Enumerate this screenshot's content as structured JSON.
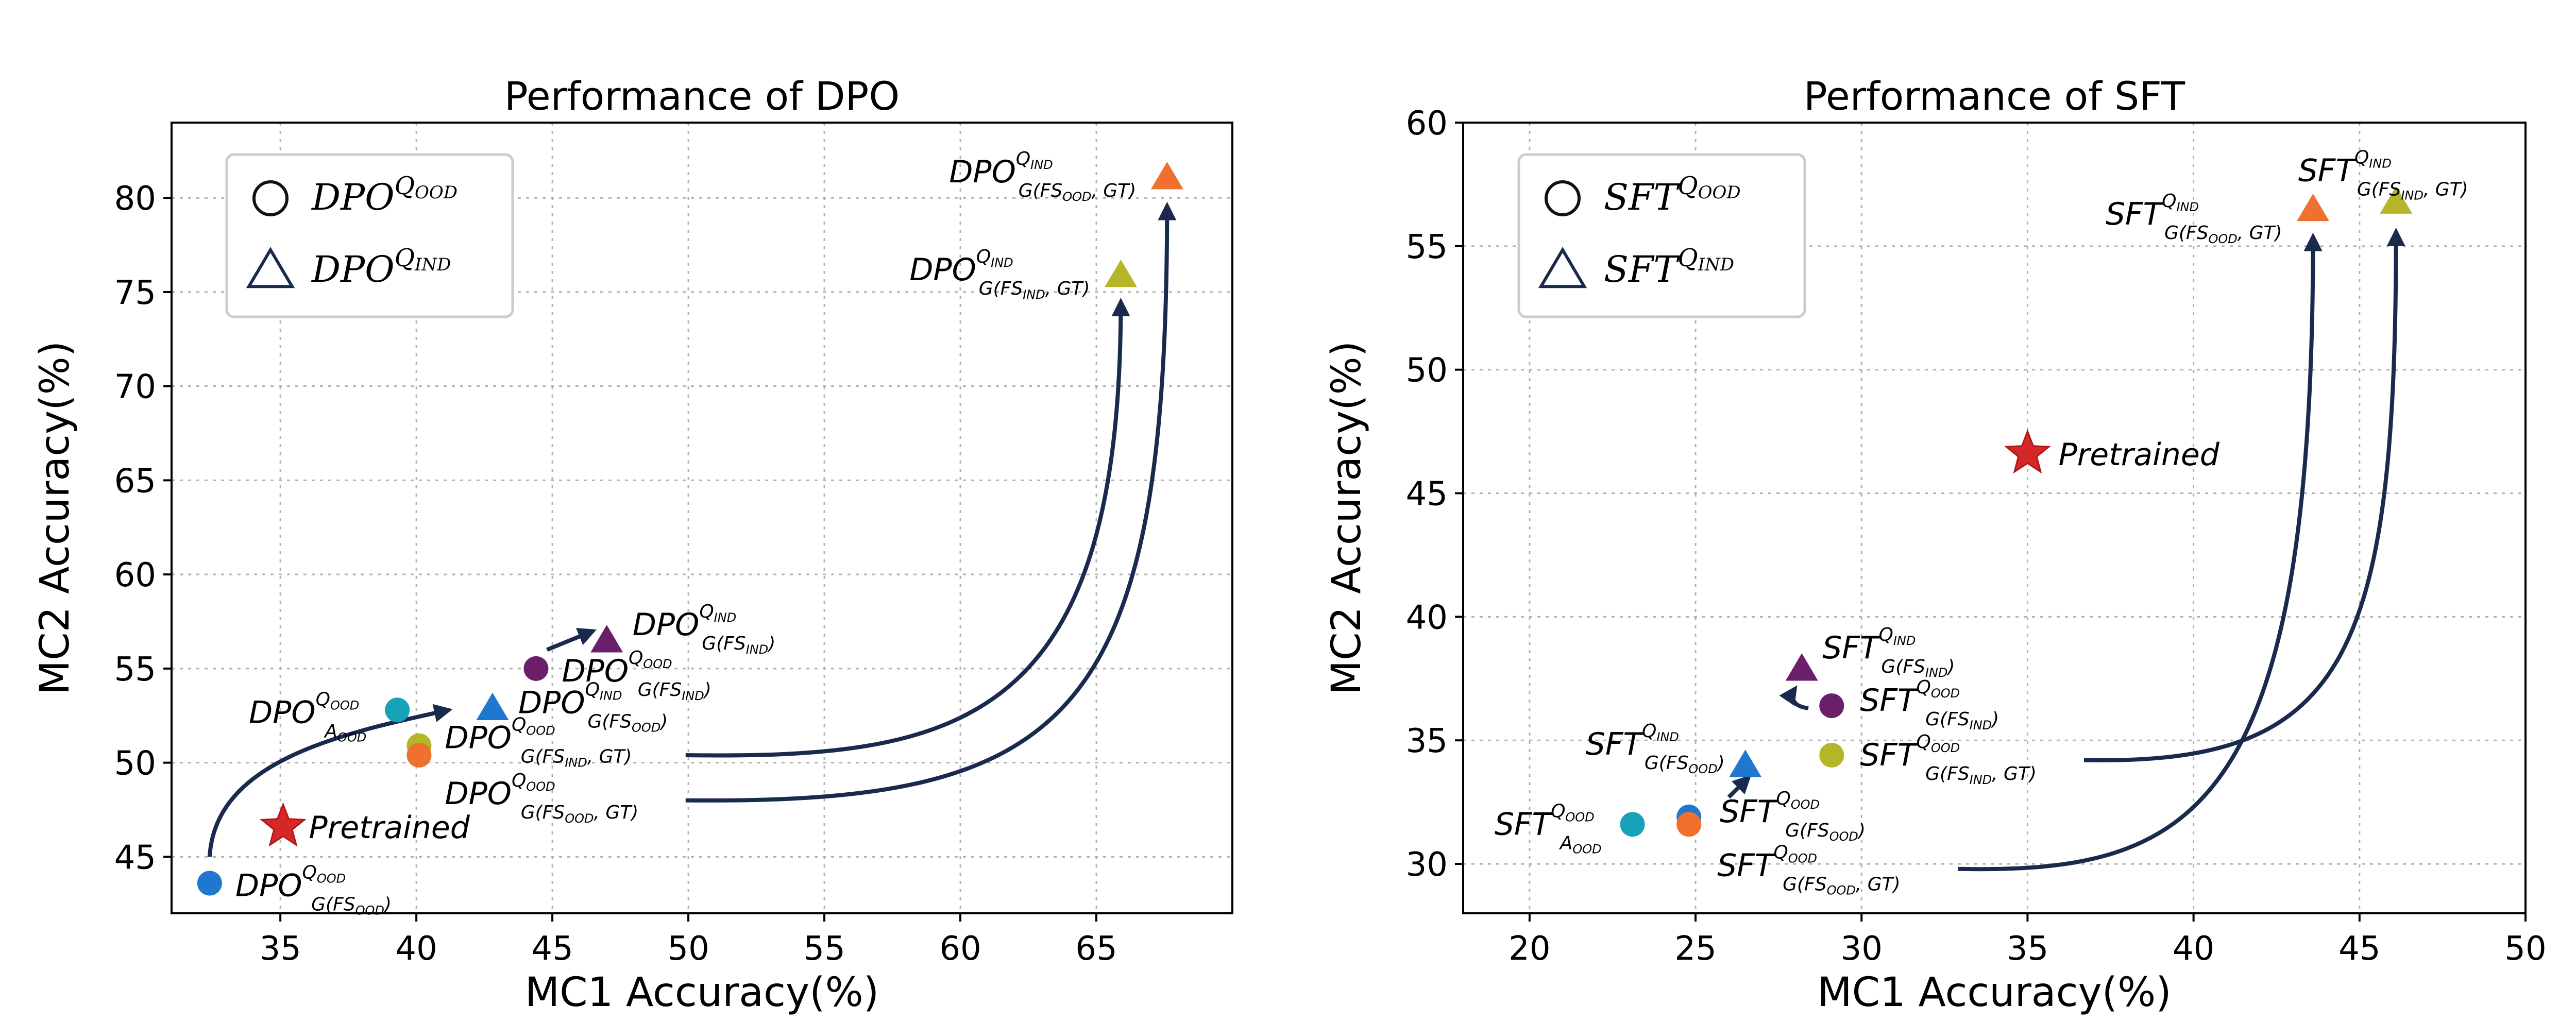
{
  "chart_data": [
    {
      "type": "scatter",
      "title": "Performance of DPO",
      "xlabel": "MC1 Accuracy(%)",
      "ylabel": "MC2 Accuracy(%)",
      "xlim": [
        31,
        70
      ],
      "ylim": [
        42,
        84
      ],
      "xticks": [
        35,
        40,
        45,
        50,
        55,
        60,
        65
      ],
      "yticks": [
        45,
        50,
        55,
        60,
        65,
        70,
        75,
        80
      ],
      "grid": true,
      "legend_position": "top-left",
      "legend": [
        {
          "marker": "circle",
          "base": "DPO",
          "sup": "Q",
          "subsup": "OOD"
        },
        {
          "marker": "triangle",
          "base": "DPO",
          "sup": "Q",
          "subsup": "IND"
        }
      ],
      "points": [
        {
          "name": "pretrained",
          "x": 35.1,
          "y": 46.6,
          "marker": "star",
          "color": "#d62728",
          "label": "Pretrained",
          "label_kind": "plain"
        },
        {
          "name": "dpo-g-fs-ood-circle",
          "x": 32.4,
          "y": 43.6,
          "marker": "circle",
          "color": "#1f77d0",
          "label": {
            "sup": "Q",
            "subsup": "OOD",
            "sub": "G(FS",
            "subsub": "OOD",
            "sub_end": ")"
          }
        },
        {
          "name": "dpo-a-ood-circle",
          "x": 39.3,
          "y": 52.8,
          "marker": "circle",
          "color": "#17a2b8",
          "label": {
            "sup": "Q",
            "subsup": "OOD",
            "sub": "A",
            "subsub": "OOD",
            "sub_end": ""
          }
        },
        {
          "name": "dpo-g-fs-ind-gt-circle",
          "x": 40.1,
          "y": 50.9,
          "marker": "circle",
          "color": "#b5b52a",
          "label": {
            "sup": "Q",
            "subsup": "OOD",
            "sub": "G(FS",
            "subsub": "IND",
            "sub_end": ", GT)"
          }
        },
        {
          "name": "dpo-g-fs-ood-gt-circle",
          "x": 40.1,
          "y": 50.4,
          "marker": "circle",
          "color": "#f07030",
          "label": {
            "sup": "Q",
            "subsup": "OOD",
            "sub": "G(FS",
            "subsub": "OOD",
            "sub_end": ", GT)"
          }
        },
        {
          "name": "dpo-g-fs-ind-circle",
          "x": 44.4,
          "y": 55.0,
          "marker": "circle",
          "color": "#6b1f6b",
          "label": {
            "sup": "Q",
            "subsup": "OOD",
            "sub": "G(FS",
            "subsub": "IND",
            "sub_end": ")"
          }
        },
        {
          "name": "dpo-g-fs-ood-triangle",
          "x": 42.8,
          "y": 52.9,
          "marker": "triangle",
          "color": "#1f77d0",
          "label": {
            "sup": "Q",
            "subsup": "IND",
            "sub": "G(FS",
            "subsub": "OOD",
            "sub_end": ")"
          }
        },
        {
          "name": "dpo-g-fs-ind-triangle",
          "x": 47.0,
          "y": 56.5,
          "marker": "triangle",
          "color": "#6b1f6b",
          "label": {
            "sup": "Q",
            "subsup": "IND",
            "sub": "G(FS",
            "subsub": "IND",
            "sub_end": ")"
          }
        },
        {
          "name": "dpo-g-fs-ind-gt-triangle",
          "x": 65.9,
          "y": 75.9,
          "marker": "triangle",
          "color": "#b5b52a",
          "label": {
            "sup": "Q",
            "subsup": "IND",
            "sub": "G(FS",
            "subsub": "IND",
            "sub_end": ", GT)"
          }
        },
        {
          "name": "dpo-g-fs-ood-gt-triangle",
          "x": 67.6,
          "y": 81.1,
          "marker": "triangle",
          "color": "#f07030",
          "label": {
            "sup": "Q",
            "subsup": "IND",
            "sub": "G(FS",
            "subsub": "OOD",
            "sub_end": ", GT)"
          }
        }
      ],
      "base_label": "DPO"
    },
    {
      "type": "scatter",
      "title": "Performance of SFT",
      "xlabel": "MC1 Accuracy(%)",
      "ylabel": "MC2 Accuracy(%)",
      "xlim": [
        18,
        50
      ],
      "ylim": [
        28,
        60
      ],
      "xticks": [
        20,
        25,
        30,
        35,
        40,
        45,
        50
      ],
      "yticks": [
        30,
        35,
        40,
        45,
        50,
        55,
        60
      ],
      "grid": true,
      "legend_position": "top-left",
      "legend": [
        {
          "marker": "circle",
          "base": "SFT",
          "sup": "Q",
          "subsup": "OOD"
        },
        {
          "marker": "triangle",
          "base": "SFT",
          "sup": "Q",
          "subsup": "IND"
        }
      ],
      "points": [
        {
          "name": "pretrained",
          "x": 35.0,
          "y": 46.6,
          "marker": "star",
          "color": "#d62728",
          "label": "Pretrained",
          "label_kind": "plain"
        },
        {
          "name": "sft-a-ood-circle",
          "x": 23.1,
          "y": 31.6,
          "marker": "circle",
          "color": "#17a2b8",
          "label": {
            "sup": "Q",
            "subsup": "OOD",
            "sub": "A",
            "subsub": "OOD",
            "sub_end": ""
          }
        },
        {
          "name": "sft-g-fs-ood-circle",
          "x": 24.8,
          "y": 31.9,
          "marker": "circle",
          "color": "#1f77d0",
          "label": {
            "sup": "Q",
            "subsup": "OOD",
            "sub": "G(FS",
            "subsub": "OOD",
            "sub_end": ")"
          }
        },
        {
          "name": "sft-g-fs-ood-gt-circle",
          "x": 24.8,
          "y": 31.6,
          "marker": "circle",
          "color": "#f07030",
          "label": {
            "sup": "Q",
            "subsup": "OOD",
            "sub": "G(FS",
            "subsub": "OOD",
            "sub_end": ", GT)"
          }
        },
        {
          "name": "sft-g-fs-ind-circle",
          "x": 29.1,
          "y": 36.4,
          "marker": "circle",
          "color": "#6b1f6b",
          "label": {
            "sup": "Q",
            "subsup": "OOD",
            "sub": "G(FS",
            "subsub": "IND",
            "sub_end": ")"
          }
        },
        {
          "name": "sft-g-fs-ind-gt-circle",
          "x": 29.1,
          "y": 34.4,
          "marker": "circle",
          "color": "#b5b52a",
          "label": {
            "sup": "Q",
            "subsup": "OOD",
            "sub": "G(FS",
            "subsub": "IND",
            "sub_end": ", GT)"
          }
        },
        {
          "name": "sft-g-fs-ood-triangle",
          "x": 26.5,
          "y": 34.0,
          "marker": "triangle",
          "color": "#1f77d0",
          "label": {
            "sup": "Q",
            "subsup": "IND",
            "sub": "G(FS",
            "subsub": "OOD",
            "sub_end": ")"
          }
        },
        {
          "name": "sft-g-fs-ind-triangle",
          "x": 28.2,
          "y": 37.9,
          "marker": "triangle",
          "color": "#6b1f6b",
          "label": {
            "sup": "Q",
            "subsup": "IND",
            "sub": "G(FS",
            "subsub": "IND",
            "sub_end": ")"
          }
        },
        {
          "name": "sft-g-fs-ood-gt-triangle",
          "x": 43.6,
          "y": 56.5,
          "marker": "triangle",
          "color": "#f07030",
          "label": {
            "sup": "Q",
            "subsup": "IND",
            "sub": "G(FS",
            "subsub": "OOD",
            "sub_end": ", GT)"
          }
        },
        {
          "name": "sft-g-fs-ind-gt-triangle",
          "x": 46.1,
          "y": 56.8,
          "marker": "triangle",
          "color": "#b5b52a",
          "label": {
            "sup": "Q",
            "subsup": "IND",
            "sub": "G(FS",
            "subsub": "IND",
            "sub_end": ", GT)"
          }
        }
      ],
      "base_label": "SFT"
    }
  ]
}
